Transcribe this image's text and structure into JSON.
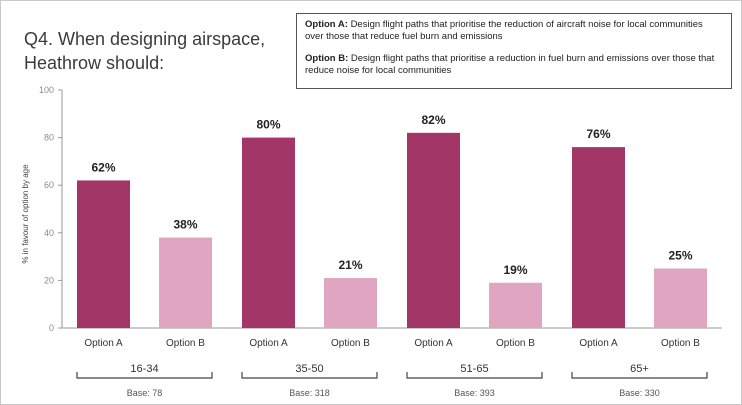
{
  "question": {
    "line1": "Q4. When designing airspace,",
    "line2": "Heathrow should:"
  },
  "options_box": {
    "a_label": "Option A:",
    "a_text": "Design flight paths that prioritise the reduction of aircraft noise for local communities over those that reduce fuel burn and emissions",
    "b_label": "Option B:",
    "b_text": "Design flight paths that prioritise a reduction in fuel burn and emissions over those that reduce noise for local communities"
  },
  "colors": {
    "option_a": "#a13667",
    "option_b": "#e0a5c1",
    "axis": "#9a9a9a"
  },
  "chart_data": {
    "type": "bar",
    "ylabel": "% in favour of option by age",
    "ylim": [
      0,
      100
    ],
    "yticks": [
      "0",
      "20",
      "40",
      "60",
      "80",
      "100"
    ],
    "grid": false,
    "groups": [
      {
        "name": "16-34",
        "base": "Base: 78",
        "bars": [
          {
            "label": "Option A",
            "value": 62,
            "value_label": "62%"
          },
          {
            "label": "Option B",
            "value": 38,
            "value_label": "38%"
          }
        ]
      },
      {
        "name": "35-50",
        "base": "Base: 318",
        "bars": [
          {
            "label": "Option A",
            "value": 80,
            "value_label": "80%"
          },
          {
            "label": "Option B",
            "value": 21,
            "value_label": "21%"
          }
        ]
      },
      {
        "name": "51-65",
        "base": "Base: 393",
        "bars": [
          {
            "label": "Option A",
            "value": 82,
            "value_label": "82%"
          },
          {
            "label": "Option B",
            "value": 19,
            "value_label": "19%"
          }
        ]
      },
      {
        "name": "65+",
        "base": "Base: 330",
        "bars": [
          {
            "label": "Option A",
            "value": 76,
            "value_label": "76%"
          },
          {
            "label": "Option B",
            "value": 25,
            "value_label": "25%"
          }
        ]
      }
    ]
  }
}
